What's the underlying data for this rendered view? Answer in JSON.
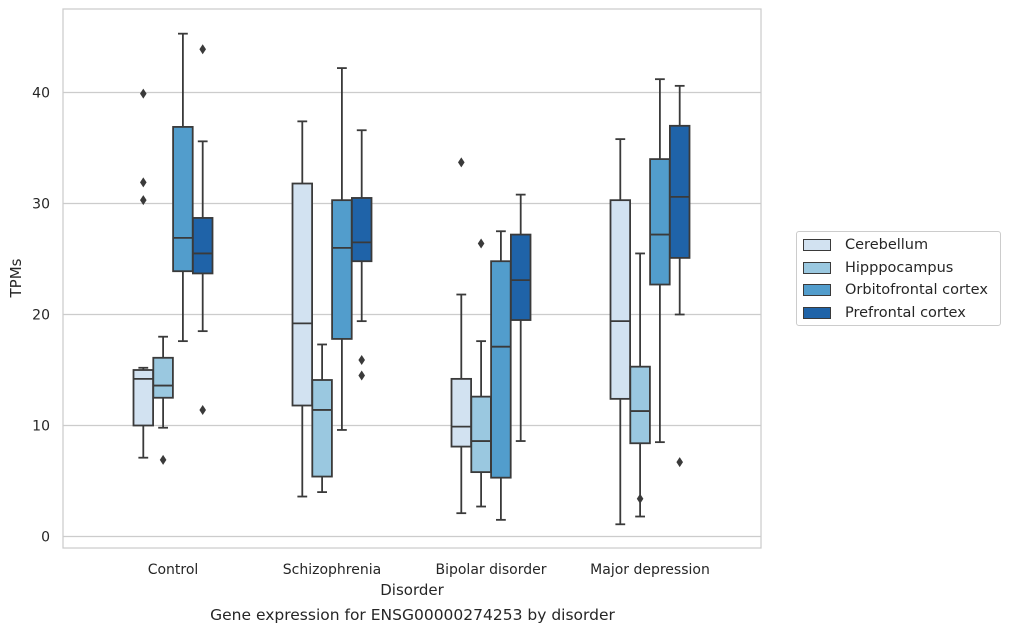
{
  "chart_data": {
    "type": "box",
    "caption": "Gene expression for ENSG00000274253 by disorder",
    "xlabel": "Disorder",
    "ylabel": "TPMs",
    "ylim": [
      -1,
      46
    ],
    "yticks": [
      0,
      10,
      20,
      30,
      40
    ],
    "grid": "horizontal",
    "legend_position": "right",
    "categories": [
      "Control",
      "Schizophrenia",
      "Bipolar disorder",
      "Major depression"
    ],
    "series": [
      {
        "name": "Cerebellum",
        "color": "#d2e2f1",
        "boxes": [
          {
            "whislo": 7.1,
            "q1": 10.0,
            "med": 14.2,
            "q3": 15.0,
            "whishi": 15.2,
            "fliers": [
              39.9,
              31.9,
              30.3
            ]
          },
          {
            "whislo": 3.6,
            "q1": 11.8,
            "med": 19.2,
            "q3": 31.8,
            "whishi": 37.4,
            "fliers": []
          },
          {
            "whislo": 2.1,
            "q1": 8.1,
            "med": 9.9,
            "q3": 14.2,
            "whishi": 21.8,
            "fliers": [
              33.7
            ]
          },
          {
            "whislo": 1.1,
            "q1": 12.4,
            "med": 19.4,
            "q3": 30.3,
            "whishi": 35.8,
            "fliers": []
          }
        ]
      },
      {
        "name": "Hipppocampus",
        "color": "#9ac8e0",
        "boxes": [
          {
            "whislo": 9.8,
            "q1": 12.5,
            "med": 13.6,
            "q3": 16.1,
            "whishi": 18.0,
            "fliers": [
              6.9
            ]
          },
          {
            "whislo": 4.0,
            "q1": 5.4,
            "med": 11.4,
            "q3": 14.1,
            "whishi": 17.3,
            "fliers": []
          },
          {
            "whislo": 2.7,
            "q1": 5.8,
            "med": 8.6,
            "q3": 12.6,
            "whishi": 17.6,
            "fliers": [
              26.4
            ]
          },
          {
            "whislo": 1.8,
            "q1": 8.4,
            "med": 11.3,
            "q3": 15.3,
            "whishi": 25.5,
            "fliers": [
              3.4
            ]
          }
        ]
      },
      {
        "name": "Orbitofrontal cortex",
        "color": "#529dcc",
        "boxes": [
          {
            "whislo": 17.6,
            "q1": 23.9,
            "med": 26.9,
            "q3": 36.9,
            "whishi": 45.3,
            "fliers": []
          },
          {
            "whislo": 9.6,
            "q1": 17.8,
            "med": 26.0,
            "q3": 30.3,
            "whishi": 42.2,
            "fliers": []
          },
          {
            "whislo": 1.5,
            "q1": 5.3,
            "med": 17.1,
            "q3": 24.8,
            "whishi": 27.5,
            "fliers": []
          },
          {
            "whislo": 8.5,
            "q1": 22.7,
            "med": 27.2,
            "q3": 34.0,
            "whishi": 41.2,
            "fliers": []
          }
        ]
      },
      {
        "name": "Prefrontal cortex",
        "color": "#1f63a8",
        "boxes": [
          {
            "whislo": 18.5,
            "q1": 23.7,
            "med": 25.5,
            "q3": 28.7,
            "whishi": 35.6,
            "fliers": [
              43.9,
              11.4
            ]
          },
          {
            "whislo": 19.4,
            "q1": 24.8,
            "med": 26.5,
            "q3": 30.5,
            "whishi": 36.6,
            "fliers": [
              15.9,
              14.5
            ]
          },
          {
            "whislo": 8.6,
            "q1": 19.5,
            "med": 23.1,
            "q3": 27.2,
            "whishi": 30.8,
            "fliers": []
          },
          {
            "whislo": 20.0,
            "q1": 25.1,
            "med": 30.6,
            "q3": 37.0,
            "whishi": 40.6,
            "fliers": [
              6.7
            ]
          }
        ]
      }
    ]
  }
}
